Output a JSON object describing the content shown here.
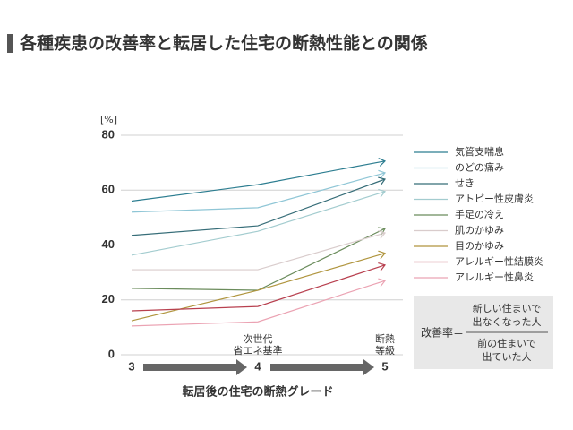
{
  "chart_data": {
    "type": "line",
    "title": "各種疾患の改善率と転居した住宅の断熱性能との関係",
    "y_unit": "[%]",
    "x_label": "転居後の住宅の断熱グレード",
    "categories": [
      "3",
      "4",
      "5"
    ],
    "category_notes": [
      null,
      [
        "次世代",
        "省エネ基準"
      ],
      [
        "断熱",
        "等級"
      ]
    ],
    "ylim": [
      0,
      80
    ],
    "yticks": [
      0,
      20,
      40,
      60,
      80
    ],
    "grid": true,
    "series": [
      {
        "name": "気管支喘息",
        "color": "#2c7d90",
        "values": [
          56,
          62,
          70.6
        ]
      },
      {
        "name": "のどの痛み",
        "color": "#8fc6d6",
        "values": [
          52,
          53.6,
          66.3
        ]
      },
      {
        "name": "せき",
        "color": "#366d78",
        "values": [
          43.5,
          47,
          64
        ]
      },
      {
        "name": "アトピー性皮膚炎",
        "color": "#a3cccf",
        "values": [
          36.3,
          45,
          59.5
        ]
      },
      {
        "name": "手足の冷え",
        "color": "#6b8c5c",
        "values": [
          24.2,
          23.5,
          46
        ]
      },
      {
        "name": "肌のかゆみ",
        "color": "#d9cccc",
        "values": [
          31,
          31,
          44.4
        ]
      },
      {
        "name": "目のかゆみ",
        "color": "#b0953e",
        "values": [
          12.4,
          23.5,
          37
        ]
      },
      {
        "name": "アレルギー性結膜炎",
        "color": "#b8404f",
        "values": [
          16,
          17.6,
          32.7
        ]
      },
      {
        "name": "アレルギー性鼻炎",
        "color": "#eba3b3",
        "values": [
          10.5,
          12,
          27
        ]
      }
    ],
    "formula": {
      "label": "改善率＝",
      "numerator": [
        "新しい住まいで",
        "出なくなった人"
      ],
      "denominator": [
        "前の住まいで",
        "出ていた人"
      ]
    }
  }
}
